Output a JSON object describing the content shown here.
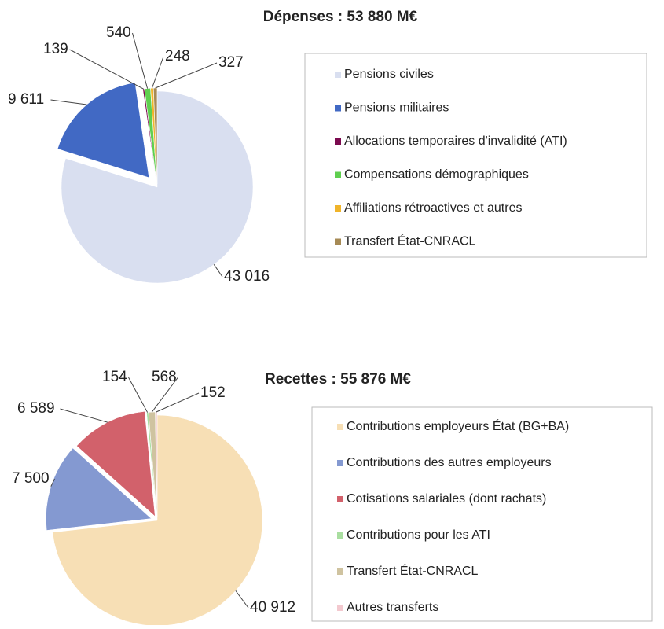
{
  "chart_data": [
    {
      "type": "pie",
      "title": "Dépenses : 53 880 M€",
      "categories": [
        "Pensions civiles",
        "Pensions militaires",
        "Allocations temporaires d'invalidité (ATI)",
        "Compensations démographiques",
        "Affiliations rétroactives et autres",
        "Transfert État-CNRACL"
      ],
      "values": [
        43016,
        9611,
        139,
        540,
        248,
        327
      ],
      "value_labels": [
        "43 016",
        "9 611",
        "139",
        "540",
        "248",
        "327"
      ],
      "colors": [
        "#d9dff0",
        "#4169c4",
        "#7b0a4f",
        "#5fcf4f",
        "#f0b42a",
        "#a68a55"
      ]
    },
    {
      "type": "pie",
      "title": "Recettes : 55 876 M€",
      "categories": [
        "Contributions employeurs État (BG+BA)",
        "Contributions des autres employeurs",
        "Cotisations salariales (dont rachats)",
        "Contributions pour les ATI",
        "Transfert État-CNRACL",
        "Autres transferts"
      ],
      "values": [
        40912,
        7500,
        6589,
        154,
        568,
        152
      ],
      "value_labels": [
        "40 912",
        "7 500",
        "6 589",
        "154",
        "568",
        "152"
      ],
      "colors": [
        "#f7dfb5",
        "#8499d1",
        "#d2616b",
        "#a9dea0",
        "#cfc3a0",
        "#f3c9cf"
      ]
    }
  ]
}
